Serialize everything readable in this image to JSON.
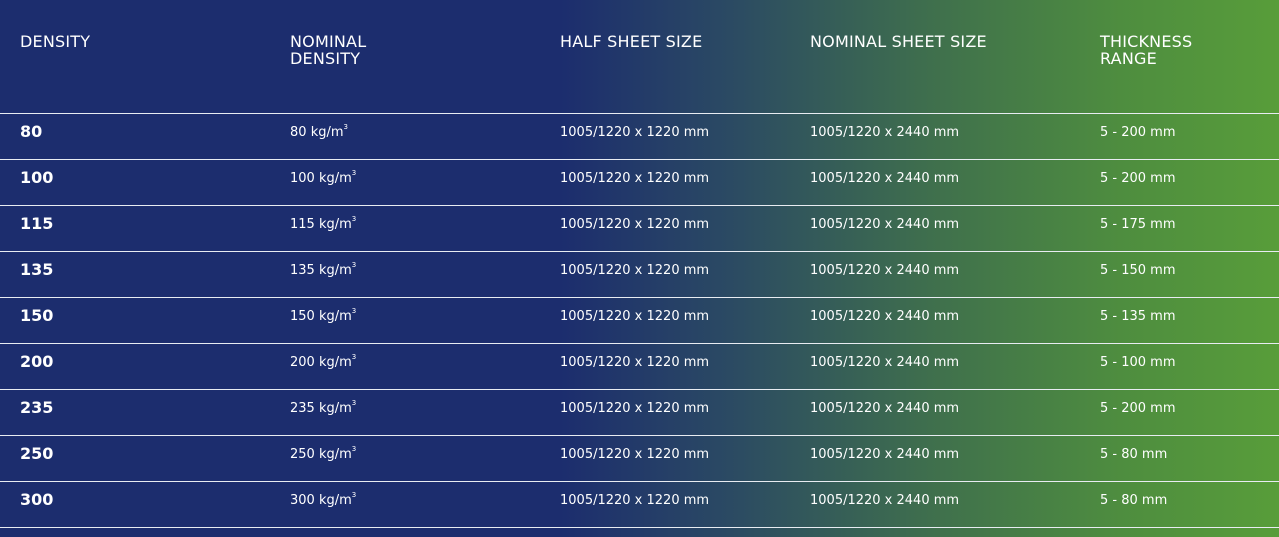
{
  "headers": [
    "DENSITY",
    "NOMINAL\nDENSITY",
    "HALF SHEET SIZE",
    "NOMINAL SHEET SIZE",
    "THICKNESS\nRANGE"
  ],
  "unit_suffix": "kg/m",
  "unit_exponent": "3",
  "rows": [
    {
      "density": "80",
      "nominal": "80",
      "half": "1005/1220 x 1220 mm",
      "sheet": "1005/1220 x 2440 mm",
      "thickness": "5 - 200 mm"
    },
    {
      "density": "100",
      "nominal": "100",
      "half": "1005/1220 x 1220 mm",
      "sheet": "1005/1220 x 2440 mm",
      "thickness": "5 - 200 mm"
    },
    {
      "density": "115",
      "nominal": "115",
      "half": "1005/1220 x 1220 mm",
      "sheet": "1005/1220 x 2440 mm",
      "thickness": "5 - 175 mm"
    },
    {
      "density": "135",
      "nominal": "135",
      "half": "1005/1220 x 1220 mm",
      "sheet": "1005/1220 x 2440 mm",
      "thickness": "5 - 150 mm"
    },
    {
      "density": "150",
      "nominal": "150",
      "half": "1005/1220 x 1220 mm",
      "sheet": "1005/1220 x 2440 mm",
      "thickness": "5 - 135 mm"
    },
    {
      "density": "200",
      "nominal": "200",
      "half": "1005/1220 x 1220 mm",
      "sheet": "1005/1220 x 2440 mm",
      "thickness": "5 - 100 mm"
    },
    {
      "density": "235",
      "nominal": "235",
      "half": "1005/1220 x 1220 mm",
      "sheet": "1005/1220 x 2440 mm",
      "thickness": "5 - 200 mm"
    },
    {
      "density": "250",
      "nominal": "250",
      "half": "1005/1220 x 1220 mm",
      "sheet": "1005/1220 x 2440 mm",
      "thickness": "5 - 80 mm"
    },
    {
      "density": "300",
      "nominal": "300",
      "half": "1005/1220 x 1220 mm",
      "sheet": "1005/1220 x 2440 mm",
      "thickness": "5 - 80 mm"
    }
  ],
  "colors": {
    "navy": "#1c2d6e",
    "green": "#589d3a",
    "rule": "#e8ecf2"
  }
}
